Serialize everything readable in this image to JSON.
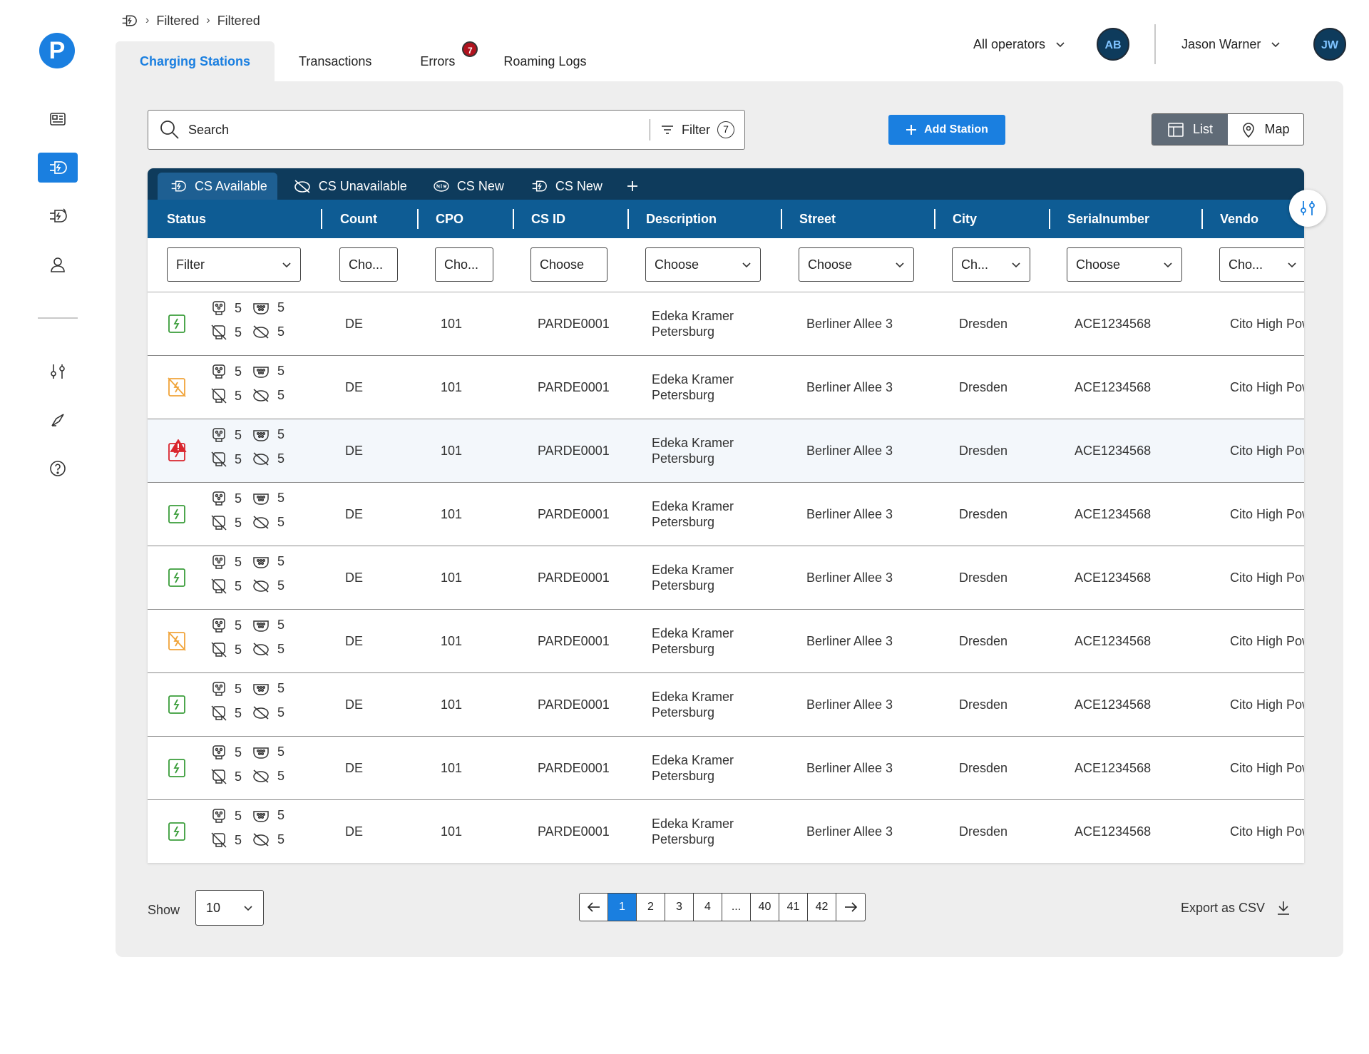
{
  "brand": {
    "logo_letter": "P",
    "accent": "#1a7fe0",
    "dark": "#0e3b5c",
    "header_blue": "#0e5c94"
  },
  "sidebar": {
    "items": [
      {
        "name": "dashboard-icon",
        "active": false
      },
      {
        "name": "charging-station-icon",
        "active": true
      },
      {
        "name": "charging-sessions-icon",
        "active": false
      },
      {
        "name": "user-icon",
        "active": false
      },
      {
        "name": "settings-sliders-icon",
        "active": false
      },
      {
        "name": "megaphone-icon",
        "active": false
      },
      {
        "name": "help-icon",
        "active": false
      }
    ]
  },
  "breadcrumb": {
    "items": [
      "Filtered",
      "Filtered"
    ]
  },
  "tabs": [
    {
      "label": "Charging Stations",
      "active": true
    },
    {
      "label": "Transactions"
    },
    {
      "label": "Errors",
      "badge": "7"
    },
    {
      "label": "Roaming Logs"
    }
  ],
  "header": {
    "operators_label": "All operators",
    "operators_avatar": "AB",
    "user_name": "Jason Warner",
    "user_avatar": "JW"
  },
  "toolbar": {
    "search_placeholder": "Search",
    "filter_label": "Filter",
    "filter_count": "7",
    "add_station_label": "Add Station",
    "view_list_label": "List",
    "view_map_label": "Map",
    "active_view": "List"
  },
  "saved_views": [
    {
      "label": "CS Available",
      "icon": "charging-station-icon",
      "active": true
    },
    {
      "label": "CS Unavailable",
      "icon": "unavailable-icon"
    },
    {
      "label": "CS New",
      "icon": "new-badge-icon"
    },
    {
      "label": "CS New",
      "icon": "charging-station-icon"
    }
  ],
  "columns": [
    "Status",
    "Count",
    "CPO",
    "CS ID",
    "Description",
    "Street",
    "City",
    "Serialnumber",
    "Vendo"
  ],
  "column_filters": [
    "Filter",
    "Cho...",
    "Cho...",
    "Choose",
    "Choose",
    "Choose",
    "Ch...",
    "Choose",
    "Cho..."
  ],
  "rows": [
    {
      "status": "available",
      "counts": [
        "5",
        "5",
        "5",
        "5"
      ],
      "country": "DE",
      "cpo": "101",
      "cs_id": "PARDE0001",
      "desc_1": "Edeka Kramer",
      "desc_2": "Petersburg",
      "street": "Berliner Allee 3",
      "city": "Dresden",
      "serial": "ACE1234568",
      "vendor": "Cito High Power"
    },
    {
      "status": "unavailable",
      "counts": [
        "5",
        "5",
        "5",
        "5"
      ],
      "country": "DE",
      "cpo": "101",
      "cs_id": "PARDE0001",
      "desc_1": "Edeka Kramer",
      "desc_2": "Petersburg",
      "street": "Berliner Allee 3",
      "city": "Dresden",
      "serial": "ACE1234568",
      "vendor": "Cito High Power"
    },
    {
      "status": "error",
      "counts": [
        "5",
        "5",
        "5",
        "5"
      ],
      "country": "DE",
      "cpo": "101",
      "cs_id": "PARDE0001",
      "desc_1": "Edeka Kramer",
      "desc_2": "Petersburg",
      "street": "Berliner Allee 3",
      "city": "Dresden",
      "serial": "ACE1234568",
      "vendor": "Cito High Power"
    },
    {
      "status": "available",
      "counts": [
        "5",
        "5",
        "5",
        "5"
      ],
      "country": "DE",
      "cpo": "101",
      "cs_id": "PARDE0001",
      "desc_1": "Edeka Kramer",
      "desc_2": "Petersburg",
      "street": "Berliner Allee 3",
      "city": "Dresden",
      "serial": "ACE1234568",
      "vendor": "Cito High Power"
    },
    {
      "status": "available",
      "counts": [
        "5",
        "5",
        "5",
        "5"
      ],
      "country": "DE",
      "cpo": "101",
      "cs_id": "PARDE0001",
      "desc_1": "Edeka Kramer",
      "desc_2": "Petersburg",
      "street": "Berliner Allee 3",
      "city": "Dresden",
      "serial": "ACE1234568",
      "vendor": "Cito High Power"
    },
    {
      "status": "unavailable",
      "counts": [
        "5",
        "5",
        "5",
        "5"
      ],
      "country": "DE",
      "cpo": "101",
      "cs_id": "PARDE0001",
      "desc_1": "Edeka Kramer",
      "desc_2": "Petersburg",
      "street": "Berliner Allee 3",
      "city": "Dresden",
      "serial": "ACE1234568",
      "vendor": "Cito High Power"
    },
    {
      "status": "available",
      "counts": [
        "5",
        "5",
        "5",
        "5"
      ],
      "country": "DE",
      "cpo": "101",
      "cs_id": "PARDE0001",
      "desc_1": "Edeka Kramer",
      "desc_2": "Petersburg",
      "street": "Berliner Allee 3",
      "city": "Dresden",
      "serial": "ACE1234568",
      "vendor": "Cito High Power"
    },
    {
      "status": "available",
      "counts": [
        "5",
        "5",
        "5",
        "5"
      ],
      "country": "DE",
      "cpo": "101",
      "cs_id": "PARDE0001",
      "desc_1": "Edeka Kramer",
      "desc_2": "Petersburg",
      "street": "Berliner Allee 3",
      "city": "Dresden",
      "serial": "ACE1234568",
      "vendor": "Cito High Power"
    },
    {
      "status": "available",
      "counts": [
        "5",
        "5",
        "5",
        "5"
      ],
      "country": "DE",
      "cpo": "101",
      "cs_id": "PARDE0001",
      "desc_1": "Edeka Kramer",
      "desc_2": "Petersburg",
      "street": "Berliner Allee 3",
      "city": "Dresden",
      "serial": "ACE1234568",
      "vendor": "Cito High Power"
    }
  ],
  "status_colors": {
    "available": "#3a9d3a",
    "unavailable": "#f0a43a",
    "error": "#d9262e"
  },
  "footer": {
    "show_label": "Show",
    "page_size": "10",
    "pages": [
      "1",
      "2",
      "3",
      "4",
      "...",
      "40",
      "41",
      "42"
    ],
    "current_page": "1",
    "export_label": "Export as CSV"
  }
}
